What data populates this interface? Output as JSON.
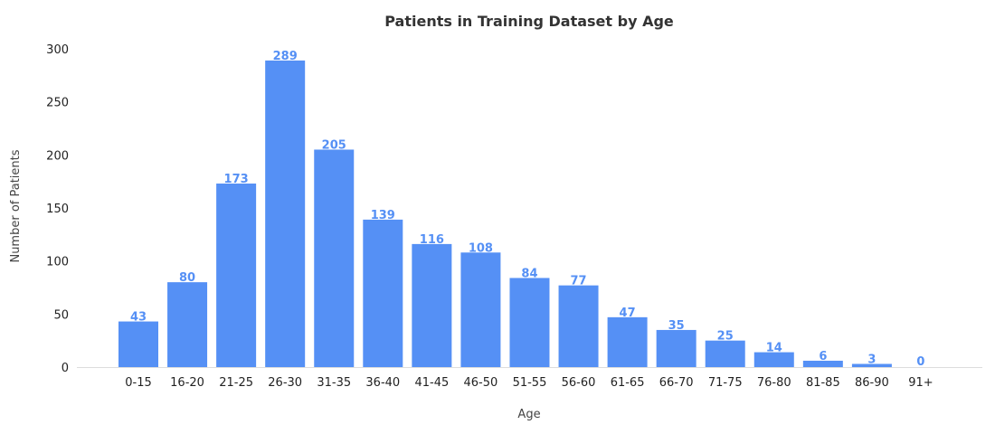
{
  "chart_data": {
    "type": "bar",
    "title": "Patients in Training Dataset by Age",
    "xlabel": "Age",
    "ylabel": "Number of Patients",
    "categories": [
      "0-15",
      "16-20",
      "21-25",
      "26-30",
      "31-35",
      "36-40",
      "41-45",
      "46-50",
      "51-55",
      "56-60",
      "61-65",
      "66-70",
      "71-75",
      "76-80",
      "81-85",
      "86-90",
      "91+"
    ],
    "values": [
      43,
      80,
      173,
      289,
      205,
      139,
      116,
      108,
      84,
      77,
      47,
      35,
      25,
      14,
      6,
      3,
      0
    ],
    "ylim": [
      0,
      300
    ],
    "yticks": [
      0,
      50,
      100,
      150,
      200,
      250,
      300
    ],
    "grid": false,
    "data_labels": true,
    "colors": {
      "bar": "#5590f5",
      "data_label": "#5590f5",
      "axis_line": "#dddddd"
    }
  }
}
